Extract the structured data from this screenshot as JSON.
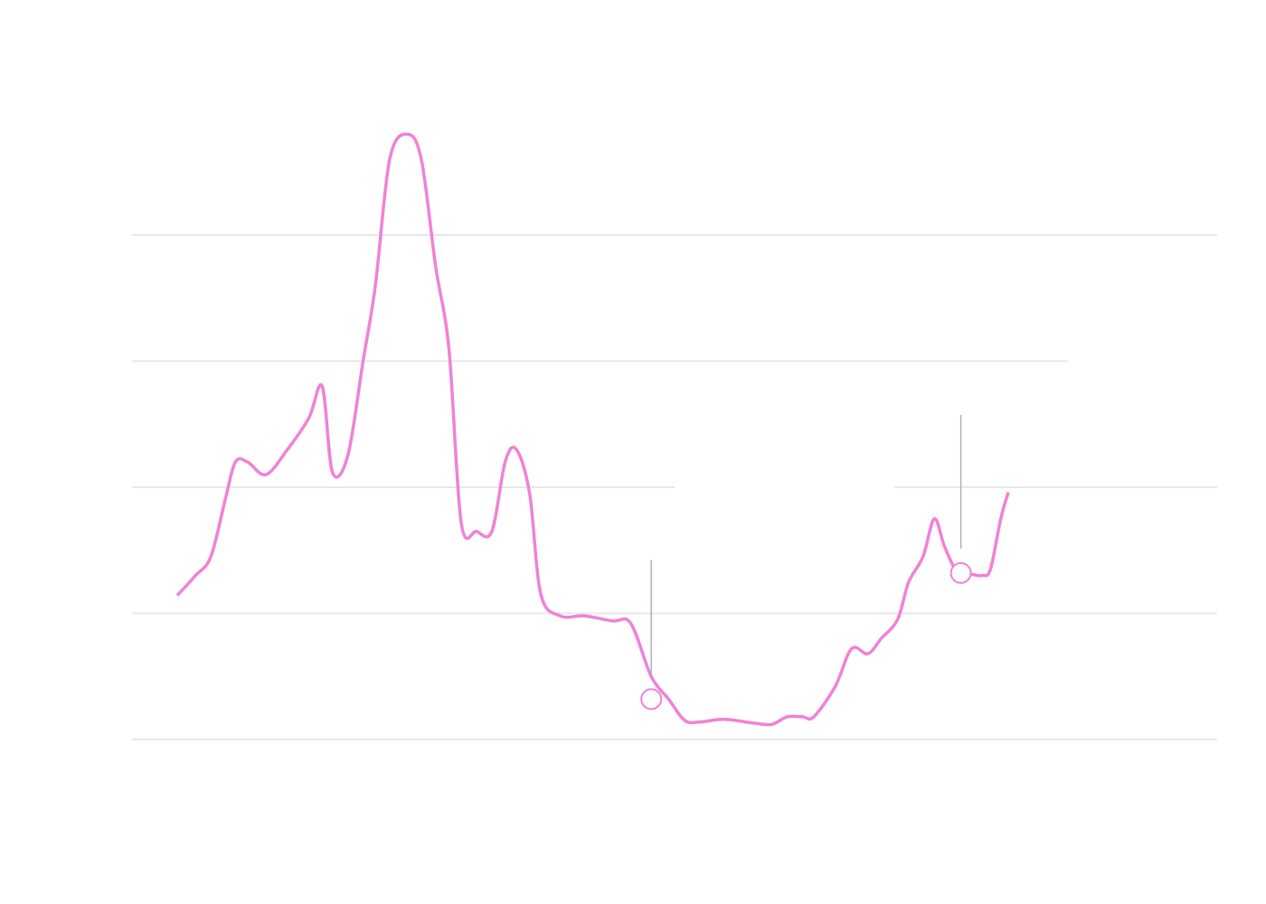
{
  "colors": {
    "series": "#f081d8",
    "grid": "#e8e8e8",
    "annotation": "#b0b0b0",
    "background": "#ffffff"
  },
  "chart_data": {
    "type": "line",
    "title": "",
    "xlabel": "",
    "ylabel": "",
    "grid": true,
    "legend": "none",
    "xlim": [
      0,
      100
    ],
    "ylim": [
      0,
      5
    ],
    "gridlines_y": [
      0,
      1,
      2,
      3,
      4
    ],
    "series": [
      {
        "values": [
          [
            0,
            1.15
          ],
          [
            1.7,
            1.3
          ],
          [
            3.2,
            1.45
          ],
          [
            4.6,
            1.9
          ],
          [
            5.6,
            2.2
          ],
          [
            6.8,
            2.2
          ],
          [
            8.6,
            2.1
          ],
          [
            10.7,
            2.3
          ],
          [
            12.8,
            2.55
          ],
          [
            14.1,
            2.8
          ],
          [
            15.1,
            2.12
          ],
          [
            16.6,
            2.25
          ],
          [
            18.1,
            3.0
          ],
          [
            19.3,
            3.6
          ],
          [
            20.7,
            4.6
          ],
          [
            22.4,
            4.8
          ],
          [
            23.8,
            4.6
          ],
          [
            25.2,
            3.75
          ],
          [
            26.5,
            3.1
          ],
          [
            27.7,
            1.72
          ],
          [
            29.2,
            1.65
          ],
          [
            30.7,
            1.65
          ],
          [
            32.0,
            2.2
          ],
          [
            33.1,
            2.3
          ],
          [
            34.4,
            1.95
          ],
          [
            35.5,
            1.15
          ],
          [
            37.4,
            0.98
          ],
          [
            39.7,
            0.98
          ],
          [
            42.5,
            0.94
          ],
          [
            44.3,
            0.92
          ],
          [
            46.3,
            0.5
          ],
          [
            48.0,
            0.32
          ],
          [
            49.6,
            0.15
          ],
          [
            51.2,
            0.14
          ],
          [
            53.5,
            0.16
          ],
          [
            56.3,
            0.13
          ],
          [
            58.1,
            0.12
          ],
          [
            59.6,
            0.18
          ],
          [
            61.1,
            0.18
          ],
          [
            62.2,
            0.18
          ],
          [
            64.3,
            0.42
          ],
          [
            65.9,
            0.72
          ],
          [
            67.5,
            0.68
          ],
          [
            68.8,
            0.8
          ],
          [
            70.4,
            0.95
          ],
          [
            71.5,
            1.25
          ],
          [
            72.9,
            1.45
          ],
          [
            74.0,
            1.75
          ],
          [
            75.0,
            1.53
          ],
          [
            76.3,
            1.32
          ],
          [
            77.6,
            1.31
          ],
          [
            78.7,
            1.3
          ],
          [
            79.5,
            1.35
          ],
          [
            80.5,
            1.75
          ],
          [
            81.2,
            1.95
          ]
        ]
      }
    ],
    "annotations": [
      {
        "x": 46.3,
        "y": 0.32
      },
      {
        "x": 76.6,
        "y": 1.32
      }
    ]
  }
}
